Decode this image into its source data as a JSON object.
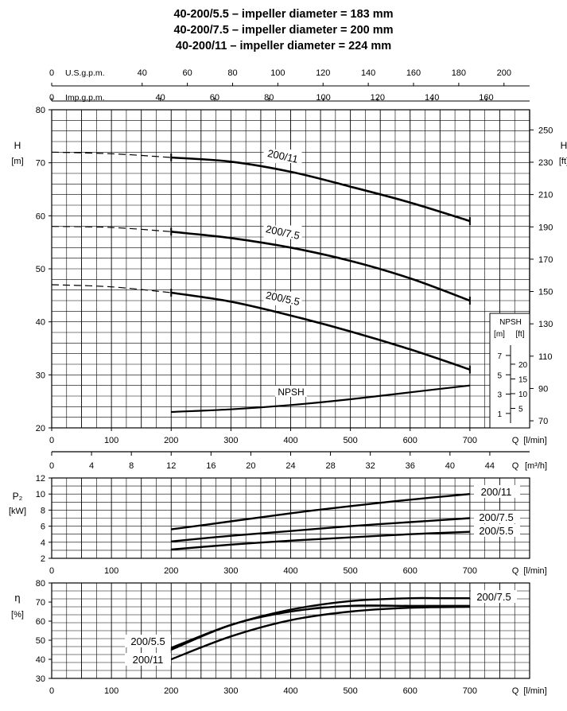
{
  "titles": [
    "40-200/5.5 – impeller diameter = 183 mm",
    "40-200/7.5 – impeller diameter = 200 mm",
    "40-200/11 – impeller diameter = 224 mm"
  ],
  "chart_data": [
    {
      "type": "line",
      "panel": "head",
      "xlabel": "Q [l/min]",
      "xlim": [
        0,
        800
      ],
      "x_ticks": [
        0,
        100,
        200,
        300,
        400,
        500,
        600,
        700
      ],
      "ylabel_left": "H [m]",
      "ylim": [
        20,
        80
      ],
      "y_ticks": [
        20,
        30,
        40,
        50,
        60,
        70,
        80
      ],
      "ylabel_right": "H [ft]",
      "y_right_ticks": [
        70,
        90,
        110,
        130,
        150,
        170,
        190,
        210,
        230,
        250
      ],
      "top_axes": [
        {
          "label": "U.S.g.p.m.",
          "ticks": [
            0,
            40,
            60,
            80,
            100,
            120,
            140,
            160,
            180,
            200
          ]
        },
        {
          "label": "Imp.g.p.m.",
          "ticks": [
            0,
            40,
            60,
            80,
            100,
            120,
            140,
            160
          ]
        }
      ],
      "grid": true,
      "series": [
        {
          "name": "200/11",
          "dashed_until": 200,
          "marks": [
            200,
            700
          ],
          "x": [
            0,
            100,
            200,
            300,
            400,
            500,
            600,
            700
          ],
          "y": [
            72,
            71.7,
            71,
            70.2,
            68.3,
            65.5,
            62.5,
            59
          ]
        },
        {
          "name": "200/7.5",
          "dashed_until": 200,
          "marks": [
            200,
            700
          ],
          "x": [
            0,
            100,
            200,
            300,
            400,
            500,
            600,
            700
          ],
          "y": [
            58,
            57.8,
            57,
            55.8,
            54,
            51.5,
            48.2,
            44
          ]
        },
        {
          "name": "200/5.5",
          "dashed_until": 200,
          "marks": [
            200,
            700
          ],
          "x": [
            0,
            100,
            200,
            300,
            400,
            500,
            600,
            700
          ],
          "y": [
            47,
            46.6,
            45.5,
            43.8,
            41.2,
            38.2,
            34.8,
            31
          ]
        },
        {
          "name": "NPSH",
          "x": [
            200,
            300,
            400,
            500,
            600,
            700
          ],
          "y": [
            23,
            23.5,
            24.3,
            25.4,
            26.7,
            28
          ]
        }
      ],
      "npsh_box": {
        "title": "NPSH",
        "units": [
          "[m]",
          "[ft]"
        ],
        "m_ticks": [
          1,
          3,
          5,
          7
        ],
        "ft_ticks": [
          5,
          10,
          15,
          20
        ]
      }
    },
    {
      "type": "axis",
      "panel": "flow-m3h",
      "xlabel": "Q [m³/h]",
      "ticks": [
        0,
        4,
        8,
        12,
        16,
        20,
        24,
        28,
        32,
        36,
        40,
        44
      ]
    },
    {
      "type": "line",
      "panel": "power",
      "xlabel": "Q [l/min]",
      "x_ticks": [
        0,
        100,
        200,
        300,
        400,
        500,
        600,
        700
      ],
      "ylabel": "P2 [kW]",
      "ylim": [
        2,
        12
      ],
      "y_ticks": [
        2,
        4,
        6,
        8,
        10,
        12
      ],
      "grid": true,
      "series": [
        {
          "name": "200/11",
          "x": [
            200,
            300,
            400,
            500,
            600,
            700
          ],
          "y": [
            5.6,
            6.6,
            7.6,
            8.5,
            9.3,
            10.0
          ]
        },
        {
          "name": "200/7.5",
          "x": [
            200,
            300,
            400,
            500,
            600,
            700
          ],
          "y": [
            4.1,
            4.8,
            5.4,
            6.0,
            6.5,
            7.0
          ]
        },
        {
          "name": "200/5.5",
          "x": [
            200,
            300,
            400,
            500,
            600,
            700
          ],
          "y": [
            3.1,
            3.7,
            4.2,
            4.6,
            5.0,
            5.3
          ]
        }
      ]
    },
    {
      "type": "line",
      "panel": "efficiency",
      "xlabel": "Q [l/min]",
      "x_ticks": [
        0,
        100,
        200,
        300,
        400,
        500,
        600,
        700
      ],
      "ylabel": "η [%]",
      "ylim": [
        30,
        80
      ],
      "y_ticks": [
        30,
        40,
        50,
        60,
        70,
        80
      ],
      "grid": true,
      "series": [
        {
          "name": "200/7.5",
          "x": [
            200,
            300,
            400,
            500,
            600,
            650,
            700
          ],
          "y": [
            46,
            58,
            66,
            70.5,
            72,
            72,
            72
          ]
        },
        {
          "name": "200/5.5",
          "x": [
            200,
            300,
            400,
            500,
            600,
            700
          ],
          "y": [
            45,
            58,
            65,
            68,
            68,
            68
          ]
        },
        {
          "name": "200/11",
          "x": [
            200,
            300,
            400,
            500,
            600,
            700
          ],
          "y": [
            40,
            52,
            60.5,
            65,
            67,
            67.5
          ]
        }
      ]
    }
  ]
}
